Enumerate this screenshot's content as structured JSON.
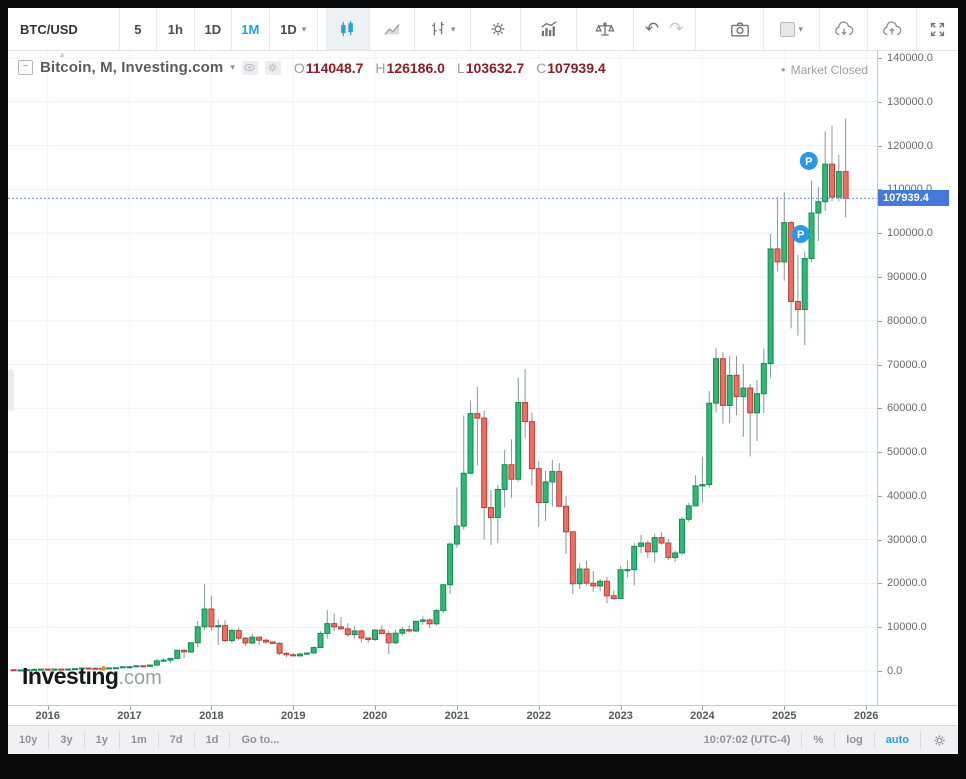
{
  "glyphs": {
    "caret": "▾",
    "bullet": "●",
    "minus": "−",
    "chevron_up": "▴",
    "undo": "↶",
    "redo": "↷"
  },
  "toolbar_top": {
    "symbol": "BTC/USD",
    "intervals": [
      "5",
      "1h",
      "1D",
      "1M"
    ],
    "active_interval": "1M",
    "interval_dropdown_value": "1D"
  },
  "legend": {
    "title": "Bitcoin, M, Investing.com",
    "ohlc": {
      "o_label": "O",
      "o": "114048.7",
      "h_label": "H",
      "h": "126186.0",
      "l_label": "L",
      "l": "103632.7",
      "c_label": "C",
      "c": "107939.4"
    },
    "market_status": "Market Closed"
  },
  "watermark": {
    "brand": "Investıng",
    "suffix": ".com"
  },
  "toolbar_bottom": {
    "ranges": [
      "10y",
      "3y",
      "1y",
      "1m",
      "7d",
      "1d"
    ],
    "goto": "Go to...",
    "clock": "10:07:02 (UTC-4)",
    "percent": "%",
    "log": "log",
    "auto": "auto"
  },
  "chart_data": {
    "type": "candlestick",
    "symbol": "BTC/USD",
    "interval": "1M",
    "start_month": "2015-08",
    "ylim": [
      0,
      140000
    ],
    "y_tick_step": 10000,
    "x_axis_years": [
      2016,
      2017,
      2018,
      2019,
      2020,
      2021,
      2022,
      2023,
      2024,
      2025,
      2026
    ],
    "last_price": 107939.4,
    "last_price_label": "107939.4",
    "colors": {
      "up": "#2fb876",
      "up_border": "#128a52",
      "down": "#ee6e65",
      "down_border": "#ba4138",
      "wick": "#85999a",
      "grid": "#eef0f3",
      "price_line": "#6e9bd8",
      "tag": "#4579d9",
      "marker": "#2d97e5"
    },
    "markers": [
      {
        "label": "P",
        "month_index": 116.6,
        "price": 116500
      },
      {
        "label": "P",
        "month_index": 115.4,
        "price": 99800
      }
    ],
    "candles": [
      [
        281,
        285,
        198,
        230
      ],
      [
        230,
        246,
        223,
        236
      ],
      [
        236,
        334,
        235,
        314
      ],
      [
        314,
        504,
        290,
        377
      ],
      [
        377,
        467,
        345,
        430
      ],
      [
        430,
        463,
        350,
        368
      ],
      [
        368,
        447,
        365,
        437
      ],
      [
        437,
        440,
        398,
        416
      ],
      [
        416,
        470,
        414,
        448
      ],
      [
        448,
        550,
        442,
        531
      ],
      [
        531,
        780,
        520,
        673
      ],
      [
        673,
        707,
        603,
        624
      ],
      [
        624,
        630,
        465,
        573
      ],
      [
        573,
        628,
        565,
        609
      ],
      [
        609,
        720,
        598,
        700
      ],
      [
        700,
        755,
        678,
        745
      ],
      [
        745,
        982,
        740,
        963
      ],
      [
        963,
        1180,
        750,
        970
      ],
      [
        970,
        1220,
        920,
        1190
      ],
      [
        1190,
        1290,
        890,
        1080
      ],
      [
        1080,
        1360,
        1060,
        1350
      ],
      [
        1350,
        2790,
        1320,
        2300
      ],
      [
        2300,
        2980,
        2130,
        2480
      ],
      [
        2480,
        2930,
        1830,
        2875
      ],
      [
        2875,
        4765,
        2670,
        4735
      ],
      [
        4735,
        4980,
        2970,
        4360
      ],
      [
        4360,
        6485,
        4115,
        6450
      ],
      [
        6450,
        11400,
        5430,
        10100
      ],
      [
        10100,
        19870,
        9380,
        14160
      ],
      [
        14160,
        17230,
        9200,
        10100
      ],
      [
        10100,
        11790,
        5920,
        10360
      ],
      [
        10360,
        11650,
        6600,
        6940
      ],
      [
        6940,
        9760,
        6430,
        9240
      ],
      [
        9240,
        9990,
        7040,
        7500
      ],
      [
        7500,
        7750,
        5780,
        6400
      ],
      [
        6400,
        8500,
        6070,
        7730
      ],
      [
        7730,
        7770,
        5880,
        7030
      ],
      [
        7030,
        7410,
        6100,
        6625
      ],
      [
        6625,
        6800,
        6200,
        6300
      ],
      [
        6300,
        6550,
        3650,
        4040
      ],
      [
        4040,
        4300,
        3150,
        3700
      ],
      [
        3700,
        4100,
        3350,
        3460
      ],
      [
        3460,
        4190,
        3330,
        3855
      ],
      [
        3855,
        4280,
        3660,
        4105
      ],
      [
        4105,
        5600,
        4050,
        5350
      ],
      [
        5350,
        9070,
        5330,
        8560
      ],
      [
        8560,
        13880,
        7430,
        10820
      ],
      [
        10820,
        13130,
        9080,
        10080
      ],
      [
        10080,
        12320,
        9350,
        9630
      ],
      [
        9630,
        10900,
        7700,
        8310
      ],
      [
        8310,
        10350,
        7300,
        9150
      ],
      [
        9150,
        9500,
        6520,
        7550
      ],
      [
        7550,
        7690,
        6430,
        7200
      ],
      [
        7200,
        9570,
        6850,
        9350
      ],
      [
        9350,
        10500,
        8430,
        8550
      ],
      [
        8550,
        9200,
        3850,
        6440
      ],
      [
        6440,
        9460,
        6150,
        8630
      ],
      [
        8630,
        10070,
        8110,
        9450
      ],
      [
        9450,
        10380,
        8830,
        9140
      ],
      [
        9140,
        11450,
        8900,
        11350
      ],
      [
        11350,
        12480,
        10550,
        11650
      ],
      [
        11650,
        12050,
        9830,
        10780
      ],
      [
        10780,
        14100,
        10380,
        13800
      ],
      [
        13800,
        19860,
        13200,
        19700
      ],
      [
        19700,
        29300,
        17600,
        28990
      ],
      [
        28990,
        41950,
        28150,
        33100
      ],
      [
        33100,
        58350,
        32300,
        45160
      ],
      [
        45160,
        61780,
        44950,
        58780
      ],
      [
        58780,
        64860,
        46950,
        57750
      ],
      [
        57750,
        59500,
        30000,
        37330
      ],
      [
        37330,
        41330,
        28800,
        35040
      ],
      [
        35040,
        42450,
        29300,
        41460
      ],
      [
        41460,
        50500,
        37330,
        47110
      ],
      [
        47110,
        52920,
        39570,
        43790
      ],
      [
        43790,
        66980,
        43290,
        61310
      ],
      [
        61310,
        69000,
        53250,
        56950
      ],
      [
        56950,
        59040,
        42330,
        46210
      ],
      [
        46210,
        47980,
        32930,
        38480
      ],
      [
        38480,
        45820,
        34300,
        43190
      ],
      [
        43190,
        48190,
        37550,
        45540
      ],
      [
        45540,
        47450,
        37580,
        37630
      ],
      [
        37630,
        40020,
        26700,
        31790
      ],
      [
        31790,
        31970,
        17590,
        19925
      ],
      [
        19925,
        24670,
        18780,
        23290
      ],
      [
        23290,
        25200,
        19520,
        20050
      ],
      [
        20050,
        22800,
        18100,
        19430
      ],
      [
        19430,
        21080,
        18190,
        20490
      ],
      [
        20490,
        21480,
        15480,
        17170
      ],
      [
        17170,
        18390,
        16260,
        16540
      ],
      [
        16540,
        23960,
        16490,
        23130
      ],
      [
        23130,
        25250,
        21350,
        23140
      ],
      [
        23140,
        29180,
        19550,
        28470
      ],
      [
        28470,
        31050,
        26940,
        29230
      ],
      [
        29230,
        29820,
        25800,
        27210
      ],
      [
        27210,
        31400,
        24800,
        30470
      ],
      [
        30470,
        31800,
        28860,
        29230
      ],
      [
        29230,
        30180,
        25350,
        25930
      ],
      [
        25930,
        27480,
        24900,
        26960
      ],
      [
        26960,
        35150,
        26550,
        34650
      ],
      [
        34650,
        38410,
        34080,
        37710
      ],
      [
        37710,
        44700,
        37610,
        42270
      ],
      [
        42270,
        48970,
        38500,
        42580
      ],
      [
        42580,
        63930,
        41880,
        61170
      ],
      [
        61170,
        73790,
        59000,
        71330
      ],
      [
        71330,
        72800,
        56500,
        60640
      ],
      [
        60640,
        71950,
        56550,
        67530
      ],
      [
        67530,
        71980,
        58400,
        62670
      ],
      [
        62670,
        70080,
        53500,
        64620
      ],
      [
        64620,
        65600,
        49000,
        58970
      ],
      [
        58970,
        66500,
        52550,
        63330
      ],
      [
        63330,
        73620,
        58900,
        70210
      ],
      [
        70210,
        99800,
        66840,
        96400
      ],
      [
        96400,
        108260,
        91250,
        93430
      ],
      [
        93430,
        109360,
        89160,
        102400
      ],
      [
        102400,
        102800,
        78250,
        84380
      ],
      [
        84380,
        95000,
        76600,
        82550
      ],
      [
        82550,
        95770,
        74420,
        94210
      ],
      [
        94210,
        112000,
        93350,
        104600
      ],
      [
        104600,
        110530,
        98200,
        107170
      ],
      [
        107170,
        123240,
        105100,
        115760
      ],
      [
        115760,
        124500,
        107300,
        108240
      ],
      [
        108240,
        117900,
        107250,
        114060
      ],
      [
        114048.7,
        126186.0,
        103632.7,
        107939.4
      ]
    ]
  }
}
